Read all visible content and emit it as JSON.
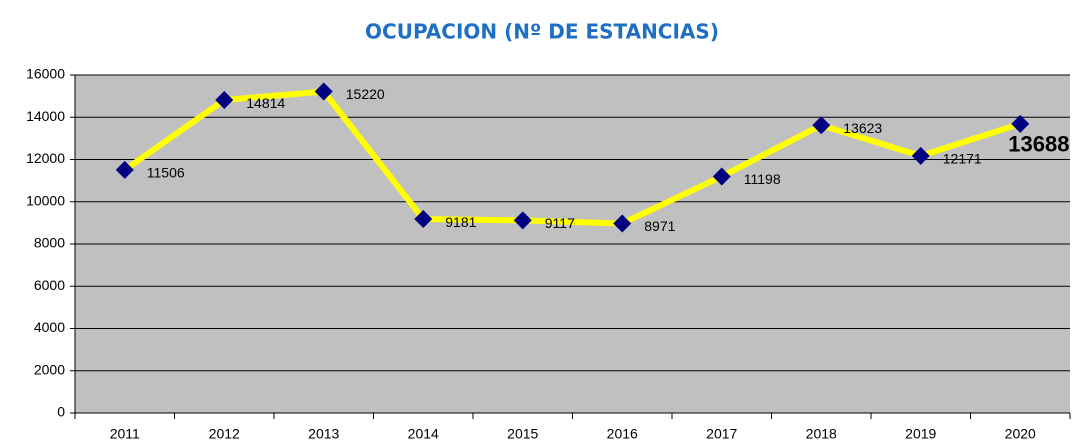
{
  "chart_data": {
    "type": "line",
    "title": "OCUPACION (Nº DE ESTANCIAS)",
    "categories": [
      "2011",
      "2012",
      "2013",
      "2014",
      "2015",
      "2016",
      "2017",
      "2018",
      "2019",
      "2020"
    ],
    "series": [
      {
        "color": "#ffff00",
        "marker_color": "#000080",
        "values": [
          11506,
          14814,
          15220,
          9181,
          9117,
          8971,
          11198,
          13623,
          12171,
          13688
        ]
      }
    ],
    "label_colors": [
      "#000000",
      "#000000",
      "#000000",
      "#000000",
      "#000000",
      "#000000",
      "#000000",
      "#000000",
      "#000000",
      "#ff0000"
    ],
    "ylim": [
      0,
      16000
    ],
    "yticks": [
      0,
      2000,
      4000,
      6000,
      8000,
      10000,
      12000,
      14000,
      16000
    ],
    "grid": true,
    "plot_background": "#c0c0c0"
  }
}
